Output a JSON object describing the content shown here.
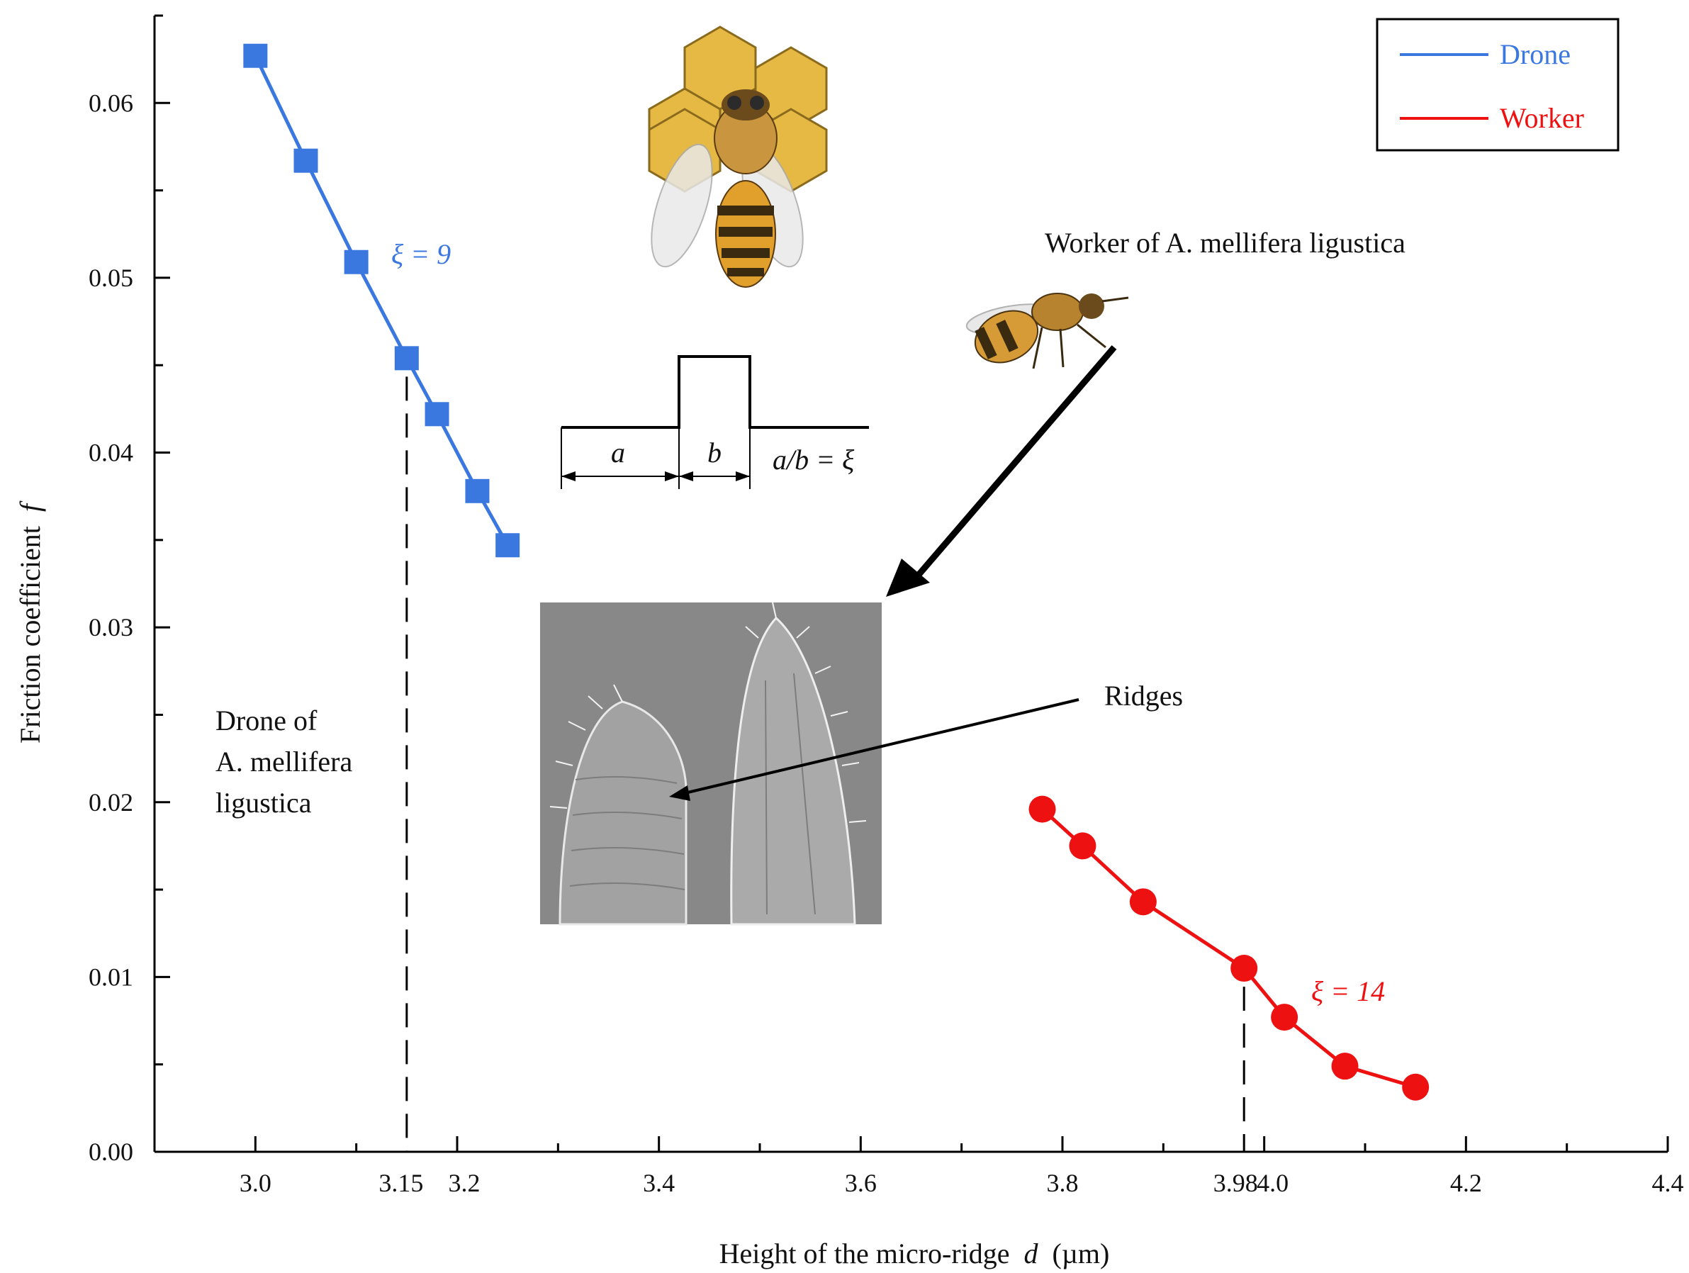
{
  "chart_data": {
    "type": "line",
    "xlabel": "Height of the micro-ridge",
    "xlabel_symbol": "d",
    "xlabel_unit": "(µm)",
    "ylabel": "Friction coefficient",
    "ylabel_symbol": "f",
    "xlim": [
      2.9,
      4.4
    ],
    "ylim": [
      0.0,
      0.065
    ],
    "x_ticks": [
      "3.0",
      "3.15",
      "3.2",
      "3.4",
      "3.6",
      "3.8",
      "3.98",
      "4.0",
      "4.2",
      "4.4"
    ],
    "x_tick_values": [
      3.0,
      3.15,
      3.2,
      3.4,
      3.6,
      3.8,
      3.98,
      4.0,
      4.2,
      4.4
    ],
    "y_ticks": [
      "0.00",
      "0.01",
      "0.02",
      "0.03",
      "0.04",
      "0.05",
      "0.06"
    ],
    "y_tick_values": [
      0.0,
      0.01,
      0.02,
      0.03,
      0.04,
      0.05,
      0.06
    ],
    "legend_position": "top-right",
    "series": [
      {
        "name": "Drone",
        "color": "#3a78e0",
        "marker": "square",
        "x": [
          3.0,
          3.05,
          3.1,
          3.15,
          3.18,
          3.22,
          3.25
        ],
        "y": [
          0.0627,
          0.0567,
          0.0509,
          0.0454,
          0.0422,
          0.0378,
          0.0347
        ]
      },
      {
        "name": "Worker",
        "color": "#ee1111",
        "marker": "circle",
        "x": [
          3.78,
          3.82,
          3.88,
          3.98,
          4.02,
          4.08,
          4.15
        ],
        "y": [
          0.0196,
          0.0175,
          0.0143,
          0.0105,
          0.0077,
          0.0049,
          0.0037
        ]
      }
    ],
    "reference_lines": [
      {
        "x": 3.15,
        "y_top": 0.0454
      },
      {
        "x": 3.98,
        "y_top": 0.0105
      }
    ],
    "annotations": {
      "drone_xi": "ξ = 9",
      "worker_xi": "ξ = 14",
      "drone_caption": [
        "Drone of",
        "A. mellifera",
        "ligustica"
      ],
      "worker_caption": "Worker of A. mellifera ligustica",
      "ridges": "Ridges",
      "schematic_a": "a",
      "schematic_b": "b",
      "schematic_ratio": "a/b = ξ"
    }
  }
}
